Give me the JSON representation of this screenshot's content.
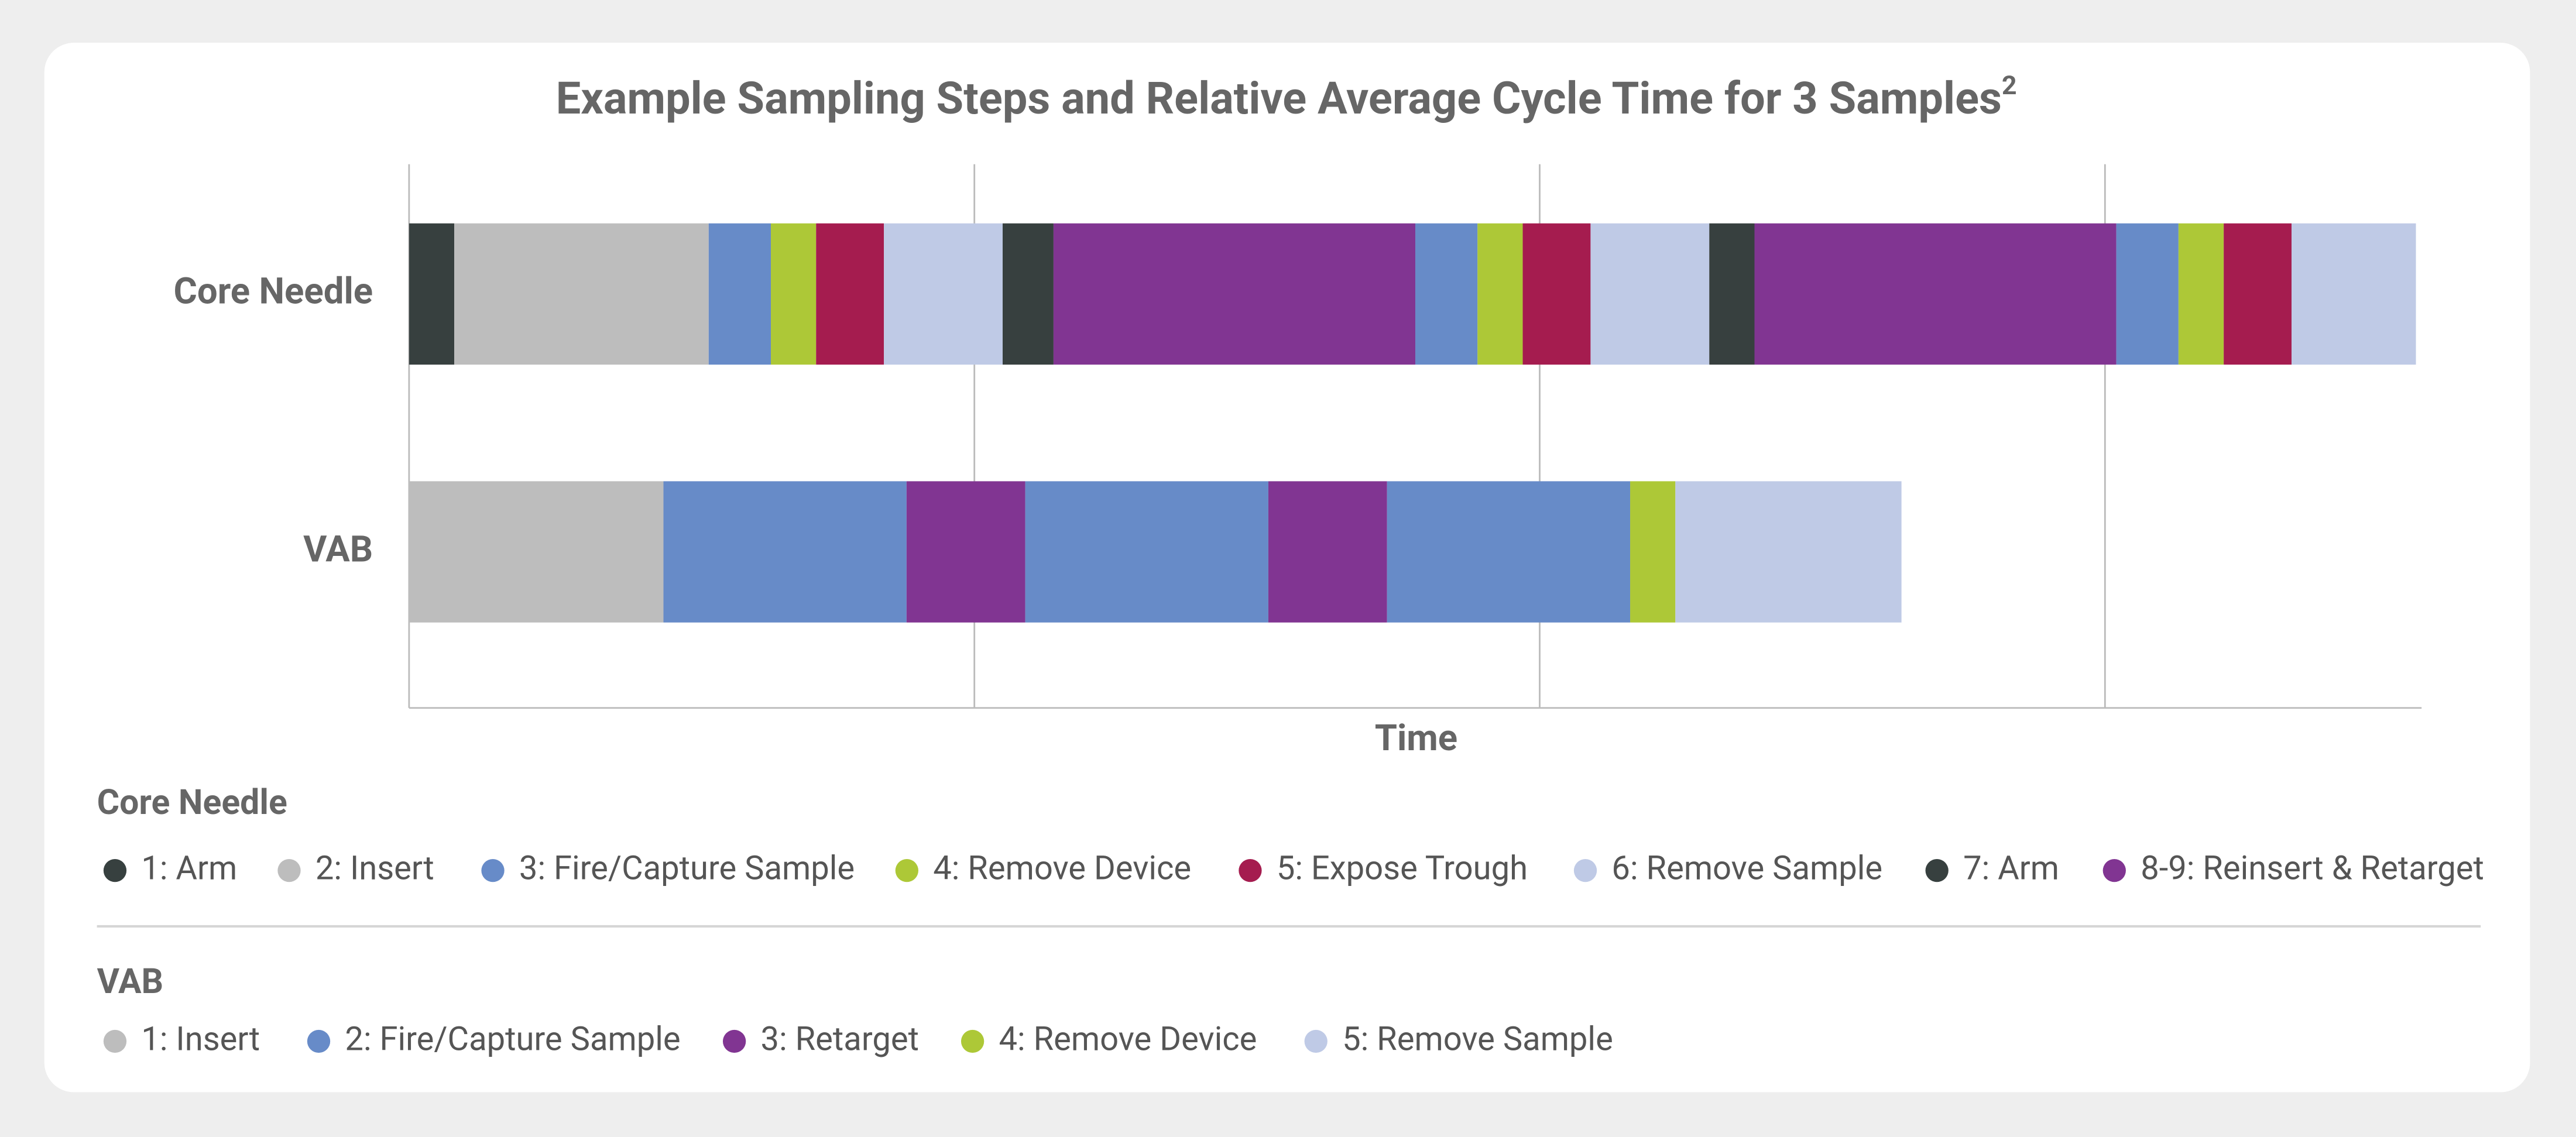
{
  "chart_data": {
    "type": "bar",
    "orientation": "horizontal",
    "stacked": true,
    "title": "Example Sampling Steps and Relative Average Cycle Time for 3 Samples",
    "title_note": "2",
    "x_label": "Time",
    "xlim": [
      0,
      3.56
    ],
    "xticks": [
      0,
      1,
      2,
      3
    ],
    "tick_labels": false,
    "grid": true,
    "series": [
      {
        "name": "Core Needle",
        "values": [
          0.08,
          0.45,
          0.11,
          0.08,
          0.12,
          0.21,
          0.09,
          0.64,
          0.11,
          0.08,
          0.12,
          0.21,
          0.08,
          0.64,
          0.11,
          0.08,
          0.12,
          0.22
        ],
        "colors": [
          "#37403f",
          "#bdbdbd",
          "#678bc8",
          "#adc837",
          "#a51c4f",
          "#bfcae6",
          "#37403f",
          "#813592",
          "#678bc8",
          "#adc837",
          "#a51c4f",
          "#bfcae6",
          "#37403f",
          "#813592",
          "#678bc8",
          "#adc837",
          "#a51c4f",
          "#bfcae6"
        ],
        "legend": [
          {
            "name": "1: Arm",
            "color": "#37403f"
          },
          {
            "name": "2: Insert",
            "color": "#bdbdbd"
          },
          {
            "name": "3: Fire/Capture Sample",
            "color": "#678bc8"
          },
          {
            "name": "4: Remove Device",
            "color": "#adc837"
          },
          {
            "name": "5: Expose Trough",
            "color": "#a51c4f"
          },
          {
            "name": "6: Remove Sample",
            "color": "#bfcae6"
          },
          {
            "name": "7: Arm",
            "color": "#37403f"
          },
          {
            "name": "8-9: Reinsert & Retarget",
            "color": "#813592"
          }
        ]
      },
      {
        "name": "VAB",
        "values": [
          0.45,
          0.43,
          0.21,
          0.43,
          0.21,
          0.43,
          0.08,
          0.4
        ],
        "colors": [
          "#bdbdbd",
          "#678bc8",
          "#813592",
          "#678bc8",
          "#813592",
          "#678bc8",
          "#adc837",
          "#bfcae6"
        ],
        "legend": [
          {
            "name": "1: Insert",
            "color": "#bdbdbd"
          },
          {
            "name": "2: Fire/Capture Sample",
            "color": "#678bc8"
          },
          {
            "name": "3: Retarget",
            "color": "#813592"
          },
          {
            "name": "4: Remove Device",
            "color": "#adc837"
          },
          {
            "name": "5: Remove Sample",
            "color": "#bfcae6"
          }
        ]
      }
    ]
  }
}
